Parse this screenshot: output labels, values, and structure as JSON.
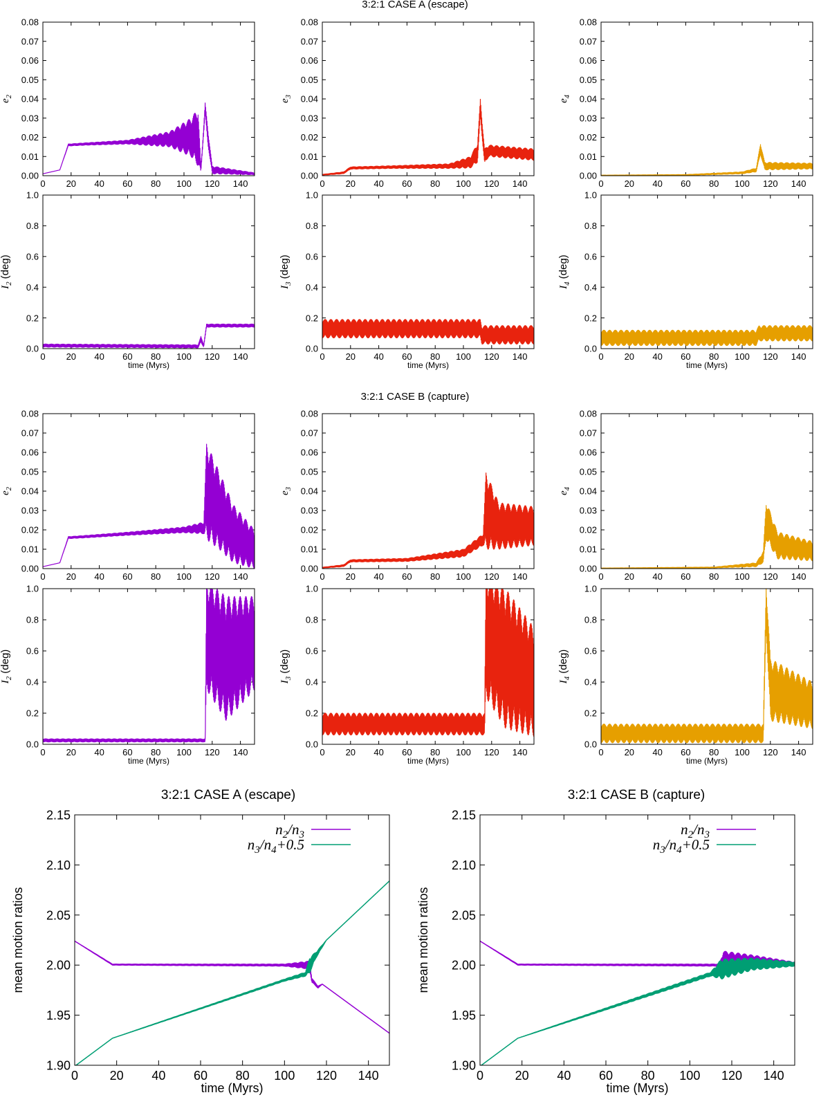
{
  "section_titles": {
    "case_a": "3:2:1 CASE A (escape)",
    "case_b": "3:2:1 CASE B (capture)"
  },
  "colors": {
    "planet2": "#9400d3",
    "planet3": "#e8230e",
    "planet4": "#e69f00",
    "ratio_n2n3": "#9400d3",
    "ratio_n3n4": "#009e73"
  },
  "chart_data": [
    {
      "id": "A_e2",
      "type": "line",
      "section": "CASE A",
      "ylabel_sym": "e",
      "ylabel_sub": "2",
      "ylabel_unit": "",
      "color_key": "planet2",
      "xlim": [
        0,
        150
      ],
      "ylim": [
        0,
        0.08
      ],
      "yticks": [
        "0.00",
        "0.01",
        "0.02",
        "0.03",
        "0.04",
        "0.05",
        "0.06",
        "0.07",
        "0.08"
      ],
      "xticks": [
        "0",
        "20",
        "40",
        "60",
        "80",
        "100",
        "120",
        "140"
      ],
      "xlabel": "",
      "knots": [
        [
          0,
          0.001,
          0
        ],
        [
          12,
          0.003,
          0
        ],
        [
          18,
          0.016,
          0.0005
        ],
        [
          30,
          0.0165,
          0.0006
        ],
        [
          60,
          0.0175,
          0.001
        ],
        [
          90,
          0.019,
          0.004
        ],
        [
          105,
          0.02,
          0.01
        ],
        [
          110,
          0.02,
          0.015
        ],
        [
          112,
          0.003,
          0.001
        ],
        [
          115,
          0.035,
          0.003
        ],
        [
          117,
          0.02,
          0.004
        ],
        [
          120,
          0.003,
          0.002
        ],
        [
          150,
          0.001,
          0.0005
        ]
      ]
    },
    {
      "id": "A_e3",
      "type": "line",
      "section": "CASE A",
      "ylabel_sym": "e",
      "ylabel_sub": "3",
      "ylabel_unit": "",
      "color_key": "planet3",
      "xlim": [
        0,
        150
      ],
      "ylim": [
        0,
        0.08
      ],
      "yticks": [
        "0.00",
        "0.01",
        "0.02",
        "0.03",
        "0.04",
        "0.05",
        "0.06",
        "0.07",
        "0.08"
      ],
      "xticks": [
        "0",
        "20",
        "40",
        "60",
        "80",
        "100",
        "120",
        "140"
      ],
      "xlabel": "",
      "knots": [
        [
          0,
          0.0005,
          0.0002
        ],
        [
          15,
          0.0015,
          0.0005
        ],
        [
          20,
          0.004,
          0.0006
        ],
        [
          50,
          0.0045,
          0.0007
        ],
        [
          90,
          0.005,
          0.0012
        ],
        [
          105,
          0.007,
          0.003
        ],
        [
          110,
          0.012,
          0.005
        ],
        [
          112,
          0.035,
          0.005
        ],
        [
          115,
          0.01,
          0.004
        ],
        [
          118,
          0.013,
          0.003
        ],
        [
          150,
          0.011,
          0.003
        ]
      ]
    },
    {
      "id": "A_e4",
      "type": "line",
      "section": "CASE A",
      "ylabel_sym": "e",
      "ylabel_sub": "4",
      "ylabel_unit": "",
      "color_key": "planet4",
      "xlim": [
        0,
        150
      ],
      "ylim": [
        0,
        0.08
      ],
      "yticks": [
        "0.00",
        "0.01",
        "0.02",
        "0.03",
        "0.04",
        "0.05",
        "0.06",
        "0.07",
        "0.08"
      ],
      "xticks": [
        "0",
        "20",
        "40",
        "60",
        "80",
        "100",
        "120",
        "140"
      ],
      "xlabel": "",
      "knots": [
        [
          0,
          0.0002,
          0.0001
        ],
        [
          60,
          0.0004,
          0.0002
        ],
        [
          100,
          0.0015,
          0.0005
        ],
        [
          110,
          0.003,
          0.001
        ],
        [
          113,
          0.014,
          0.003
        ],
        [
          116,
          0.005,
          0.002
        ],
        [
          150,
          0.005,
          0.0015
        ]
      ]
    },
    {
      "id": "A_I2",
      "type": "line",
      "section": "CASE A",
      "ylabel_sym": "I",
      "ylabel_sub": "2",
      "ylabel_unit": " (deg)",
      "color_key": "planet2",
      "xlim": [
        0,
        150
      ],
      "ylim": [
        0,
        1.0
      ],
      "yticks": [
        "0.0",
        "0.2",
        "0.4",
        "0.6",
        "0.8",
        "1.0"
      ],
      "xticks": [
        "0",
        "20",
        "40",
        "60",
        "80",
        "100",
        "120",
        "140"
      ],
      "xlabel": "time (Myrs)",
      "knots": [
        [
          0,
          0.02,
          0.01
        ],
        [
          110,
          0.015,
          0.01
        ],
        [
          112,
          0.06,
          0.02
        ],
        [
          114,
          0.02,
          0.01
        ],
        [
          116,
          0.15,
          0.01
        ],
        [
          150,
          0.15,
          0.01
        ]
      ]
    },
    {
      "id": "A_I3",
      "type": "line",
      "section": "CASE A",
      "ylabel_sym": "I",
      "ylabel_sub": "3",
      "ylabel_unit": " (deg)",
      "color_key": "planet3",
      "xlim": [
        0,
        150
      ],
      "ylim": [
        0,
        1.0
      ],
      "yticks": [
        "0.0",
        "0.2",
        "0.4",
        "0.6",
        "0.8",
        "1.0"
      ],
      "xticks": [
        "0",
        "20",
        "40",
        "60",
        "80",
        "100",
        "120",
        "140"
      ],
      "xlabel": "time (Myrs)",
      "knots": [
        [
          0,
          0.13,
          0.06
        ],
        [
          112,
          0.13,
          0.06
        ],
        [
          113,
          0.09,
          0.06
        ],
        [
          150,
          0.09,
          0.06
        ]
      ]
    },
    {
      "id": "A_I4",
      "type": "line",
      "section": "CASE A",
      "ylabel_sym": "I",
      "ylabel_sub": "4",
      "ylabel_unit": " (deg)",
      "color_key": "planet4",
      "xlim": [
        0,
        150
      ],
      "ylim": [
        0,
        1.0
      ],
      "yticks": [
        "0.0",
        "0.2",
        "0.4",
        "0.6",
        "0.8",
        "1.0"
      ],
      "xticks": [
        "0",
        "20",
        "40",
        "60",
        "80",
        "100",
        "120",
        "140"
      ],
      "xlabel": "time (Myrs)",
      "knots": [
        [
          0,
          0.07,
          0.05
        ],
        [
          110,
          0.07,
          0.05
        ],
        [
          112,
          0.1,
          0.05
        ],
        [
          150,
          0.1,
          0.05
        ]
      ]
    },
    {
      "id": "B_e2",
      "type": "line",
      "section": "CASE B",
      "ylabel_sym": "e",
      "ylabel_sub": "2",
      "ylabel_unit": "",
      "color_key": "planet2",
      "xlim": [
        0,
        150
      ],
      "ylim": [
        0,
        0.08
      ],
      "yticks": [
        "0.00",
        "0.01",
        "0.02",
        "0.03",
        "0.04",
        "0.05",
        "0.06",
        "0.07",
        "0.08"
      ],
      "xticks": [
        "0",
        "20",
        "40",
        "60",
        "80",
        "100",
        "120",
        "140"
      ],
      "xlabel": "",
      "knots": [
        [
          0,
          0.001,
          0
        ],
        [
          12,
          0.003,
          0
        ],
        [
          18,
          0.016,
          0.0005
        ],
        [
          30,
          0.0165,
          0.0006
        ],
        [
          60,
          0.018,
          0.0008
        ],
        [
          100,
          0.02,
          0.0015
        ],
        [
          114,
          0.021,
          0.003
        ],
        [
          116,
          0.04,
          0.025
        ],
        [
          125,
          0.03,
          0.02
        ],
        [
          135,
          0.018,
          0.015
        ],
        [
          150,
          0.01,
          0.01
        ]
      ]
    },
    {
      "id": "B_e3",
      "type": "line",
      "section": "CASE B",
      "ylabel_sym": "e",
      "ylabel_sub": "3",
      "ylabel_unit": "",
      "color_key": "planet3",
      "xlim": [
        0,
        150
      ],
      "ylim": [
        0,
        0.08
      ],
      "yticks": [
        "0.00",
        "0.01",
        "0.02",
        "0.03",
        "0.04",
        "0.05",
        "0.06",
        "0.07",
        "0.08"
      ],
      "xticks": [
        "0",
        "20",
        "40",
        "60",
        "80",
        "100",
        "120",
        "140"
      ],
      "xlabel": "",
      "knots": [
        [
          0,
          0.0005,
          0.0002
        ],
        [
          15,
          0.0015,
          0.0005
        ],
        [
          20,
          0.004,
          0.0006
        ],
        [
          60,
          0.0045,
          0.0008
        ],
        [
          100,
          0.008,
          0.002
        ],
        [
          114,
          0.015,
          0.003
        ],
        [
          116,
          0.03,
          0.02
        ],
        [
          125,
          0.022,
          0.012
        ],
        [
          150,
          0.022,
          0.01
        ]
      ]
    },
    {
      "id": "B_e4",
      "type": "line",
      "section": "CASE B",
      "ylabel_sym": "e",
      "ylabel_sub": "4",
      "ylabel_unit": "",
      "color_key": "planet4",
      "xlim": [
        0,
        150
      ],
      "ylim": [
        0,
        0.08
      ],
      "yticks": [
        "0.00",
        "0.01",
        "0.02",
        "0.03",
        "0.04",
        "0.05",
        "0.06",
        "0.07",
        "0.08"
      ],
      "xticks": [
        "0",
        "20",
        "40",
        "60",
        "80",
        "100",
        "120",
        "140"
      ],
      "xlabel": "",
      "knots": [
        [
          0,
          0.0002,
          0.0001
        ],
        [
          80,
          0.0006,
          0.0002
        ],
        [
          110,
          0.002,
          0.001
        ],
        [
          115,
          0.006,
          0.003
        ],
        [
          117,
          0.025,
          0.01
        ],
        [
          125,
          0.012,
          0.007
        ],
        [
          150,
          0.009,
          0.005
        ]
      ]
    },
    {
      "id": "B_I2",
      "type": "line",
      "section": "CASE B",
      "ylabel_sym": "I",
      "ylabel_sub": "2",
      "ylabel_unit": " (deg)",
      "color_key": "planet2",
      "xlim": [
        0,
        150
      ],
      "ylim": [
        0,
        1.0
      ],
      "yticks": [
        "0.0",
        "0.2",
        "0.4",
        "0.6",
        "0.8",
        "1.0"
      ],
      "xticks": [
        "0",
        "20",
        "40",
        "60",
        "80",
        "100",
        "120",
        "140"
      ],
      "xlabel": "time (Myrs)",
      "knots": [
        [
          0,
          0.025,
          0.01
        ],
        [
          115,
          0.025,
          0.01
        ],
        [
          116,
          0.7,
          0.35
        ],
        [
          130,
          0.55,
          0.4
        ],
        [
          150,
          0.65,
          0.3
        ]
      ]
    },
    {
      "id": "B_I3",
      "type": "line",
      "section": "CASE B",
      "ylabel_sym": "I",
      "ylabel_sub": "3",
      "ylabel_unit": " (deg)",
      "color_key": "planet3",
      "xlim": [
        0,
        150
      ],
      "ylim": [
        0,
        1.0
      ],
      "yticks": [
        "0.0",
        "0.2",
        "0.4",
        "0.6",
        "0.8",
        "1.0"
      ],
      "xticks": [
        "0",
        "20",
        "40",
        "60",
        "80",
        "100",
        "120",
        "140"
      ],
      "xlabel": "time (Myrs)",
      "knots": [
        [
          0,
          0.13,
          0.07
        ],
        [
          115,
          0.13,
          0.07
        ],
        [
          116,
          0.7,
          0.4
        ],
        [
          130,
          0.55,
          0.45
        ],
        [
          150,
          0.4,
          0.35
        ]
      ]
    },
    {
      "id": "B_I4",
      "type": "line",
      "section": "CASE B",
      "ylabel_sym": "I",
      "ylabel_sub": "4",
      "ylabel_unit": " (deg)",
      "color_key": "planet4",
      "xlim": [
        0,
        150
      ],
      "ylim": [
        0,
        1.0
      ],
      "yticks": [
        "0.0",
        "0.2",
        "0.4",
        "0.6",
        "0.8",
        "1.0"
      ],
      "xticks": [
        "0",
        "20",
        "40",
        "60",
        "80",
        "100",
        "120",
        "140"
      ],
      "xlabel": "time (Myrs)",
      "knots": [
        [
          0,
          0.07,
          0.06
        ],
        [
          115,
          0.07,
          0.06
        ],
        [
          117,
          0.9,
          0.15
        ],
        [
          120,
          0.35,
          0.2
        ],
        [
          150,
          0.25,
          0.15
        ]
      ]
    },
    {
      "id": "A_ratio",
      "type": "line",
      "title": "3:2:1 CASE A (escape)",
      "ylabel": "mean motion ratios",
      "xlabel": "time (Myrs)",
      "xlim": [
        0,
        150
      ],
      "ylim": [
        1.9,
        2.15
      ],
      "yticks": [
        "1.90",
        "1.95",
        "2.00",
        "2.05",
        "2.10",
        "2.15"
      ],
      "xticks": [
        "0",
        "20",
        "40",
        "60",
        "80",
        "100",
        "120",
        "140"
      ],
      "legend_position": "top-right",
      "series": [
        {
          "label_main": "n",
          "label_sub1": "2",
          "label_mid": "/n",
          "label_sub2": "3",
          "label_tail": "",
          "color_key": "ratio_n2n3",
          "knots": [
            [
              0,
              2.024,
              0
            ],
            [
              18,
              2.0005,
              0.0005
            ],
            [
              100,
              2.0,
              0.001
            ],
            [
              112,
              2.0,
              0.004
            ],
            [
              113,
              1.985,
              0.002
            ],
            [
              116,
              1.978,
              0.001
            ],
            [
              118,
              1.981,
              0
            ],
            [
              150,
              1.932,
              0
            ]
          ]
        },
        {
          "label_main": "n",
          "label_sub1": "3",
          "label_mid": "/n",
          "label_sub2": "4",
          "label_tail": "+0.5",
          "color_key": "ratio_n3n4",
          "knots": [
            [
              0,
              1.899,
              0
            ],
            [
              18,
              1.927,
              0
            ],
            [
              100,
              1.985,
              0.001
            ],
            [
              110,
              1.991,
              0.002
            ],
            [
              112,
              2.0,
              0.008
            ],
            [
              115,
              2.01,
              0.003
            ],
            [
              120,
              2.025,
              0
            ],
            [
              150,
              2.084,
              0
            ]
          ]
        }
      ]
    },
    {
      "id": "B_ratio",
      "type": "line",
      "title": "3:2:1 CASE B (capture)",
      "ylabel": "mean motion ratios",
      "xlabel": "time (Myrs)",
      "xlim": [
        0,
        150
      ],
      "ylim": [
        1.9,
        2.15
      ],
      "yticks": [
        "1.90",
        "1.95",
        "2.00",
        "2.05",
        "2.10",
        "2.15"
      ],
      "xticks": [
        "0",
        "20",
        "40",
        "60",
        "80",
        "100",
        "120",
        "140"
      ],
      "legend_position": "top-right",
      "series": [
        {
          "label_main": "n",
          "label_sub1": "2",
          "label_mid": "/n",
          "label_sub2": "3",
          "label_tail": "",
          "color_key": "ratio_n2n3",
          "knots": [
            [
              0,
              2.024,
              0
            ],
            [
              18,
              2.0005,
              0.0005
            ],
            [
              114,
              2.0,
              0.001
            ],
            [
              116,
              2.004,
              0.01
            ],
            [
              130,
              2.004,
              0.006
            ],
            [
              150,
              2.001,
              0.002
            ]
          ]
        },
        {
          "label_main": "n",
          "label_sub1": "3",
          "label_mid": "/n",
          "label_sub2": "4",
          "label_tail": "+0.5",
          "color_key": "ratio_n3n4",
          "knots": [
            [
              0,
              1.899,
              0
            ],
            [
              18,
              1.927,
              0
            ],
            [
              110,
              1.991,
              0.002
            ],
            [
              115,
              1.996,
              0.01
            ],
            [
              130,
              2.001,
              0.006
            ],
            [
              150,
              2.001,
              0.002
            ]
          ]
        }
      ]
    }
  ]
}
